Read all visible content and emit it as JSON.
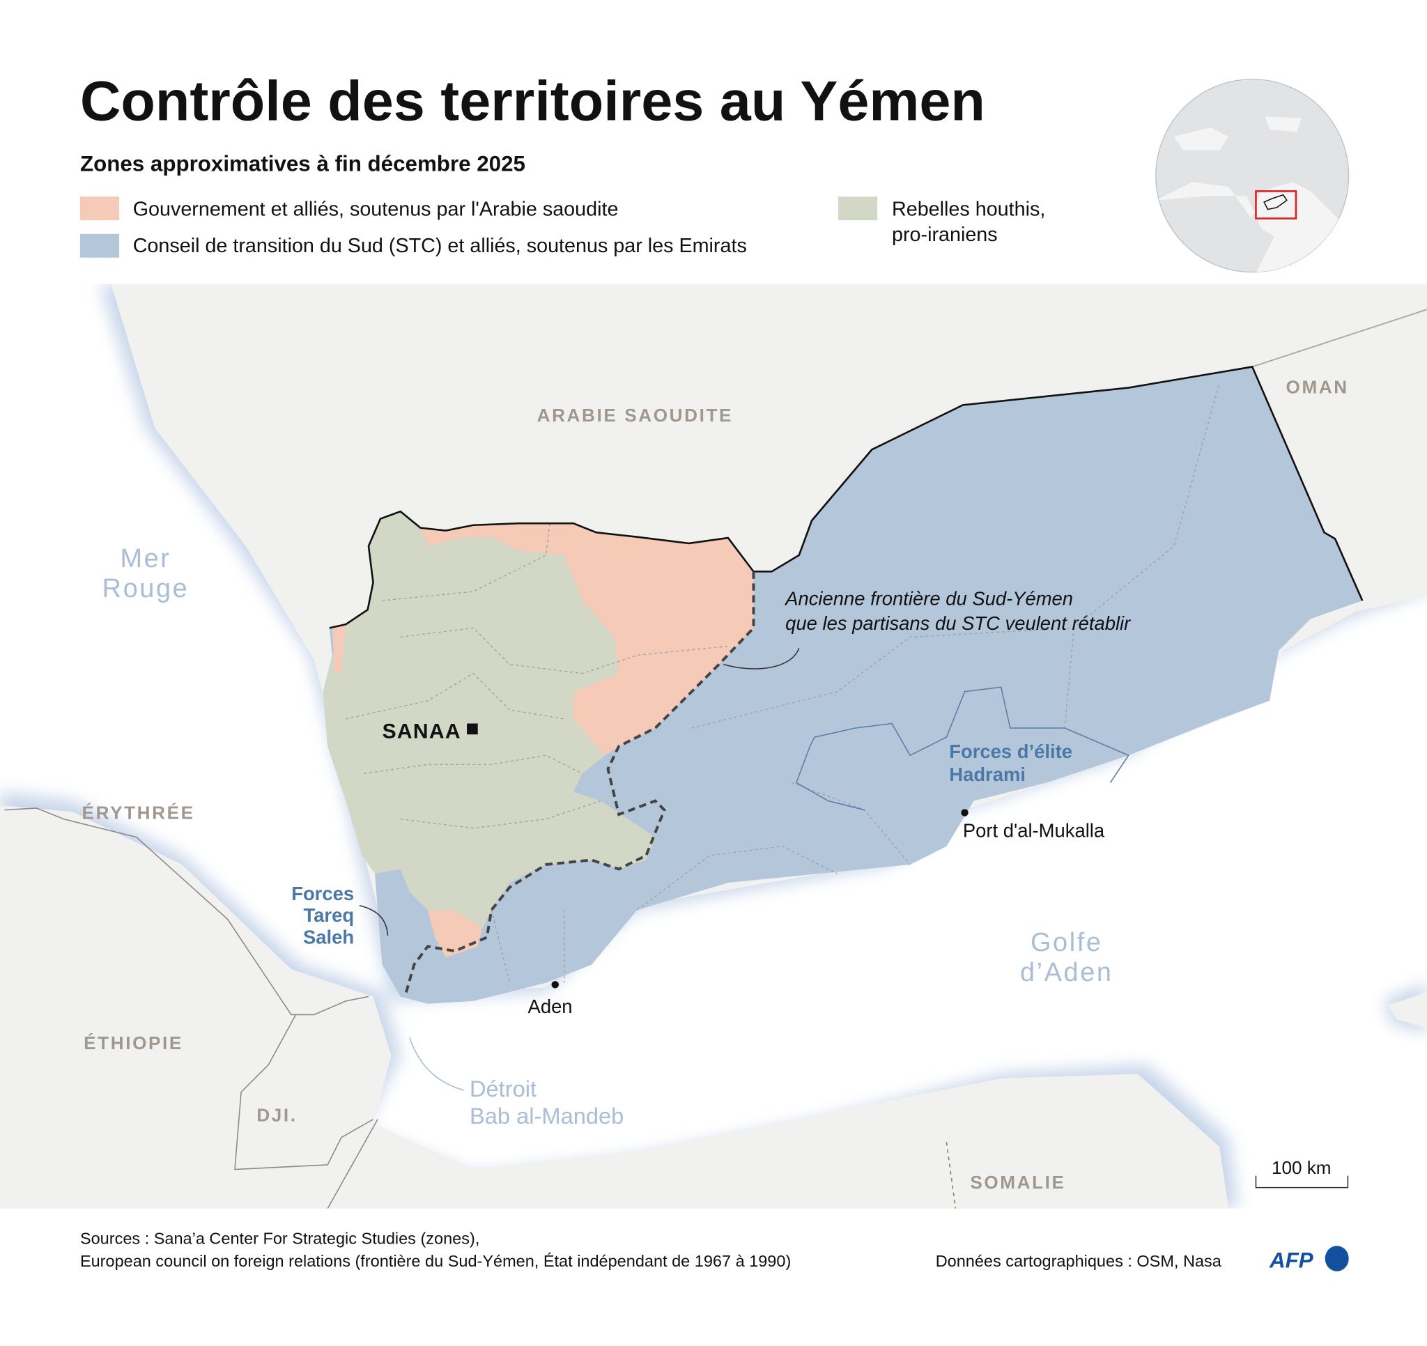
{
  "title": "Contrôle des territoires au Yémen",
  "subtitle": "Zones approximatives à fin décembre 2025",
  "legend": [
    {
      "label": "Gouvernement et alliés, soutenus par l'Arabie saoudite",
      "color": "#f5cbb8"
    },
    {
      "label": "Conseil de transition du Sud (STC) et alliés, soutenus par les Emirats",
      "color": "#b4c6da"
    },
    {
      "label_line1": "Rebelles houthis,",
      "label_line2": "pro-iraniens",
      "color": "#d3d7c6"
    }
  ],
  "map": {
    "countries": {
      "saudi": "ARABIE SAOUDITE",
      "oman": "OMAN",
      "eritrea": "ÉRYTHRÉE",
      "ethiopia": "ÉTHIOPIE",
      "djibouti": "DJI.",
      "somalia": "SOMALIE"
    },
    "seas": {
      "red_sea_1": "Mer",
      "red_sea_2": "Rouge",
      "gulf_1": "Golfe",
      "gulf_2": "d’Aden",
      "strait_1": "Détroit",
      "strait_2": "Bab al-Mandeb"
    },
    "capital": "SANAA",
    "cities": {
      "aden": "Aden",
      "mukalla": "Port d'al-Mukalla"
    },
    "forces": {
      "hadrami_1": "Forces d’élite",
      "hadrami_2": "Hadrami",
      "tareq_1": "Forces",
      "tareq_2": "Tareq",
      "tareq_3": "Saleh"
    },
    "annotation_1": "Ancienne frontière du Sud-Yémen",
    "annotation_2": "que les partisans du STC veulent rétablir",
    "scale": "100 km"
  },
  "footer": {
    "sources_1": "Sources : Sana’a Center For Strategic Studies (zones),",
    "sources_2": "European council on foreign relations (frontière du Sud-Yémen, État indépendant de 1967 à 1990)",
    "credits": "Données cartographiques : OSM, Nasa",
    "logo": "AFP"
  },
  "colors": {
    "accent_logo": "#1450a0",
    "locator_box": "#e0201c"
  }
}
